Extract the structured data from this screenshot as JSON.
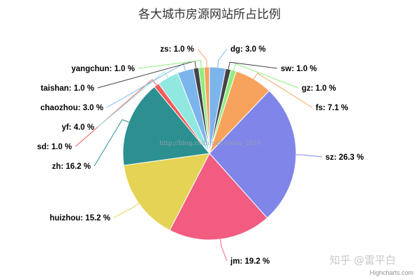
{
  "chart_data": {
    "type": "pie",
    "title": "各大城市房源网站所占比例",
    "slices": [
      {
        "name": "dg",
        "value": 3.0,
        "label": "dg: 3.0 %",
        "color": "#7cb5ec"
      },
      {
        "name": "sw",
        "value": 1.0,
        "label": "sw: 1.0 %",
        "color": "#434348"
      },
      {
        "name": "gz",
        "value": 1.0,
        "label": "gz: 1.0 %",
        "color": "#90ed7d"
      },
      {
        "name": "fs",
        "value": 7.1,
        "label": "fs: 7.1 %",
        "color": "#f7a35c"
      },
      {
        "name": "sz",
        "value": 26.3,
        "label": "sz: 26.3 %",
        "color": "#8085e9"
      },
      {
        "name": "jm",
        "value": 19.2,
        "label": "jm: 19.2 %",
        "color": "#f15c80"
      },
      {
        "name": "huizhou",
        "value": 15.2,
        "label": "huizhou: 15.2 %",
        "color": "#e4d354"
      },
      {
        "name": "zh",
        "value": 16.2,
        "label": "zh: 16.2 %",
        "color": "#2b908f"
      },
      {
        "name": "sd",
        "value": 1.0,
        "label": "sd: 1.0 %",
        "color": "#f45b5b"
      },
      {
        "name": "yf",
        "value": 4.0,
        "label": "yf: 4.0 %",
        "color": "#91e8e1"
      },
      {
        "name": "chaozhou",
        "value": 3.0,
        "label": "chaozhou: 3.0 %",
        "color": "#7cb5ec"
      },
      {
        "name": "taishan",
        "value": 1.0,
        "label": "taishan: 1.0 %",
        "color": "#434348"
      },
      {
        "name": "yangchun",
        "value": 1.0,
        "label": "yangchun: 1.0 %",
        "color": "#90ed7d"
      },
      {
        "name": "zs",
        "value": 1.0,
        "label": "zs: 1.0 %",
        "color": "#f7a35c"
      }
    ]
  },
  "credit": "Highcharts.com",
  "watermark": {
    "url_text": "http://blog.csdn.net/seven_2016",
    "brand_text": "知乎 @雷平白"
  }
}
